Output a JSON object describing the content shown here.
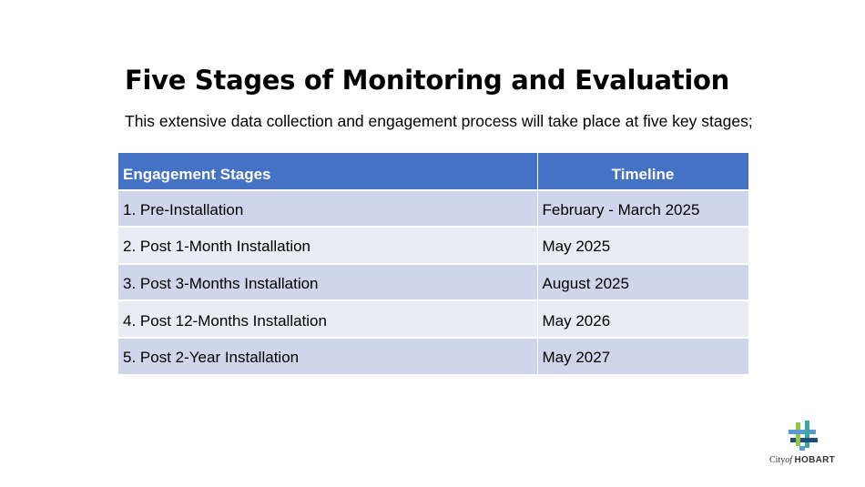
{
  "slide": {
    "title": "Five Stages of Monitoring and Evaluation",
    "subtitle": "This extensive data collection and engagement process will take place at five key stages;"
  },
  "table": {
    "headers": {
      "stage": "Engagement Stages",
      "timeline": "Timeline"
    },
    "rows": [
      {
        "stage": "1. Pre-Installation",
        "timeline": "February - March 2025"
      },
      {
        "stage": "2. Post 1-Month Installation",
        "timeline": "May 2025"
      },
      {
        "stage": "3. Post 3-Months Installation",
        "timeline": "August 2025"
      },
      {
        "stage": "4. Post 12-Months Installation",
        "timeline": "May 2026"
      },
      {
        "stage": "5. Post 2-Year Installation",
        "timeline": "May 2027"
      }
    ]
  },
  "logo": {
    "city_prefix": "City",
    "of": "of",
    "name": "HOBART",
    "icon": "city-of-hobart-logo-icon"
  },
  "colors": {
    "header_bg": "#4472c4",
    "row_odd_bg": "#cfd5ea",
    "row_even_bg": "#e9ebf5",
    "logo_green": "#8dc63f",
    "logo_blue": "#5b9bd5",
    "logo_teal": "#3aa9a1",
    "logo_navy": "#1f4e79"
  }
}
